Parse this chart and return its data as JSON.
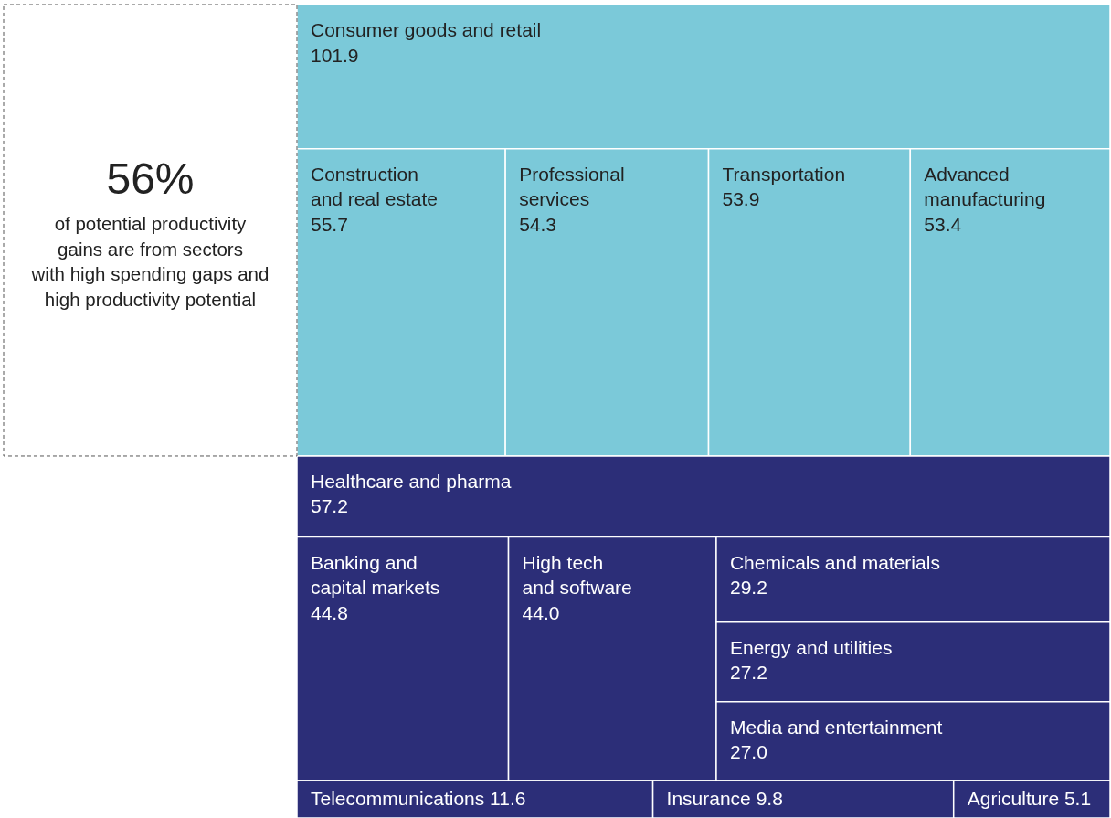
{
  "chart_data": {
    "type": "other",
    "categories": [
      "Consumer goods and retail",
      "Construction\nand real estate",
      "Professional\nservices",
      "Transportation",
      "Advanced\nmanufacturing",
      "Healthcare and pharma",
      "Banking and\ncapital markets",
      "High tech\nand software",
      "Chemicals and materials",
      "Energy and utilities",
      "Media and entertainment",
      "Telecommunications",
      "Insurance",
      "Agriculture"
    ],
    "values": [
      101.9,
      55.7,
      54.3,
      53.9,
      53.4,
      57.2,
      44.8,
      44.0,
      29.2,
      27.2,
      27.0,
      11.6,
      9.8,
      5.1
    ],
    "value_labels": [
      "101.9",
      "55.7",
      "54.3",
      "53.9",
      "53.4",
      "57.2",
      "44.8",
      "44.0",
      "29.2",
      "27.2",
      "27.0",
      "11.6",
      "9.8",
      "5.1"
    ],
    "colors": [
      "#7bc9d9",
      "#7bc9d9",
      "#7bc9d9",
      "#7bc9d9",
      "#7bc9d9",
      "#2c2e78",
      "#2c2e78",
      "#2c2e78",
      "#2c2e78",
      "#2c2e78",
      "#2c2e78",
      "#2c2e78",
      "#2c2e78",
      "#2c2e78"
    ],
    "annotations": [
      "56%",
      "of potential productivity\ngains are from sectors\nwith high spending gaps and\nhigh productivity potential"
    ]
  }
}
